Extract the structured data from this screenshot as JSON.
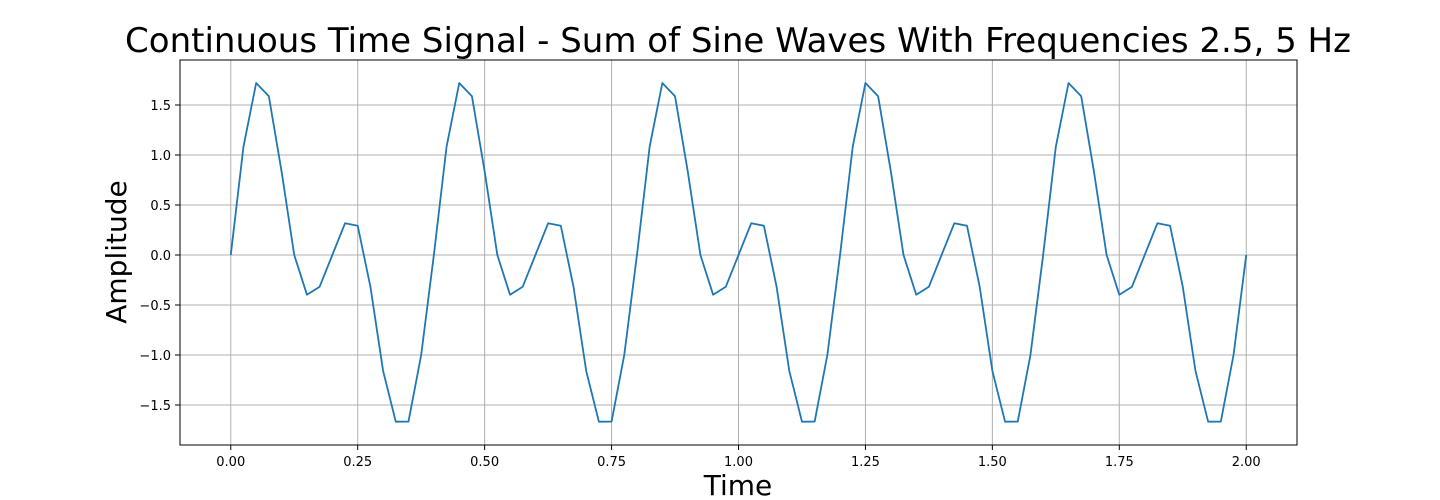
{
  "chart_data": {
    "type": "line",
    "title": "Continuous Time Signal - Sum of Sine Waves With Frequencies 2.5, 5 Hz",
    "xlabel": "Time",
    "ylabel": "Amplitude",
    "xlim": [
      -0.1,
      2.1
    ],
    "ylim": [
      -1.9,
      1.95
    ],
    "x_ticks": [
      0.0,
      0.25,
      0.5,
      0.75,
      1.0,
      1.25,
      1.5,
      1.75,
      2.0
    ],
    "x_tick_labels": [
      "0.00",
      "0.25",
      "0.50",
      "0.75",
      "1.00",
      "1.25",
      "1.50",
      "1.75",
      "2.00"
    ],
    "y_ticks": [
      -1.5,
      -1.0,
      -0.5,
      0.0,
      0.5,
      1.0,
      1.5
    ],
    "y_tick_labels": [
      "−1.5",
      "−1.0",
      "−0.5",
      "0.0",
      "0.5",
      "1.0",
      "1.5"
    ],
    "grid": true,
    "series": [
      {
        "color": "#1f77b4",
        "points": [
          [
            0.0,
            0.0
          ],
          [
            0.025,
            1.083
          ],
          [
            0.05,
            1.72
          ],
          [
            0.075,
            1.587
          ],
          [
            0.1,
            0.837
          ],
          [
            0.125,
            0.0
          ],
          [
            0.15,
            -0.397
          ],
          [
            0.175,
            -0.317
          ],
          [
            0.2,
            0.0
          ],
          [
            0.225,
            0.317
          ],
          [
            0.25,
            0.293
          ],
          [
            0.275,
            -0.317
          ],
          [
            0.3,
            -1.158
          ],
          [
            0.325,
            -1.667
          ],
          [
            0.35,
            -1.666
          ],
          [
            0.375,
            -1.0
          ],
          [
            0.4,
            0.0
          ],
          [
            0.425,
            1.083
          ],
          [
            0.45,
            1.72
          ],
          [
            0.475,
            1.587
          ],
          [
            0.5,
            0.837
          ],
          [
            0.525,
            0.0
          ],
          [
            0.55,
            -0.397
          ],
          [
            0.575,
            -0.317
          ],
          [
            0.6,
            0.0
          ],
          [
            0.625,
            0.317
          ],
          [
            0.65,
            0.293
          ],
          [
            0.675,
            -0.317
          ],
          [
            0.7,
            -1.158
          ],
          [
            0.725,
            -1.667
          ],
          [
            0.75,
            -1.666
          ],
          [
            0.775,
            -1.0
          ],
          [
            0.8,
            0.0
          ],
          [
            0.825,
            1.083
          ],
          [
            0.85,
            1.72
          ],
          [
            0.875,
            1.587
          ],
          [
            0.9,
            0.837
          ],
          [
            0.925,
            0.0
          ],
          [
            0.95,
            -0.397
          ],
          [
            0.975,
            -0.317
          ],
          [
            1.0,
            0.0
          ],
          [
            1.025,
            0.317
          ],
          [
            1.05,
            0.293
          ],
          [
            1.075,
            -0.317
          ],
          [
            1.1,
            -1.158
          ],
          [
            1.125,
            -1.667
          ],
          [
            1.15,
            -1.666
          ],
          [
            1.175,
            -1.0
          ],
          [
            1.2,
            0.0
          ],
          [
            1.225,
            1.083
          ],
          [
            1.25,
            1.72
          ],
          [
            1.275,
            1.587
          ],
          [
            1.3,
            0.837
          ],
          [
            1.325,
            0.0
          ],
          [
            1.35,
            -0.397
          ],
          [
            1.375,
            -0.317
          ],
          [
            1.4,
            0.0
          ],
          [
            1.425,
            0.317
          ],
          [
            1.45,
            0.293
          ],
          [
            1.475,
            -0.317
          ],
          [
            1.5,
            -1.158
          ],
          [
            1.525,
            -1.667
          ],
          [
            1.55,
            -1.666
          ],
          [
            1.575,
            -1.0
          ],
          [
            1.6,
            0.0
          ],
          [
            1.625,
            1.083
          ],
          [
            1.65,
            1.72
          ],
          [
            1.675,
            1.587
          ],
          [
            1.7,
            0.837
          ],
          [
            1.725,
            0.0
          ],
          [
            1.75,
            -0.397
          ],
          [
            1.775,
            -0.317
          ],
          [
            1.8,
            0.0
          ],
          [
            1.825,
            0.317
          ],
          [
            1.85,
            0.293
          ],
          [
            1.875,
            -0.317
          ],
          [
            1.9,
            -1.158
          ],
          [
            1.925,
            -1.667
          ],
          [
            1.95,
            -1.666
          ],
          [
            1.975,
            -1.0
          ],
          [
            2.0,
            0.0
          ]
        ]
      }
    ]
  }
}
